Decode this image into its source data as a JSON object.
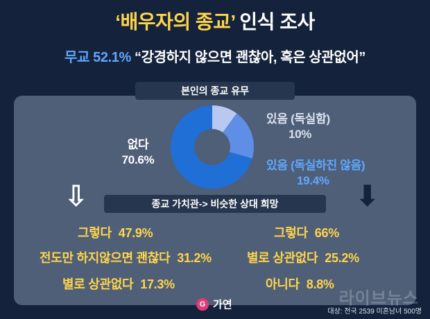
{
  "header": {
    "title_highlight": "‘배우자의 종교’",
    "title_rest": " 인식 조사",
    "subtitle_pct": "무교 52.1%",
    "subtitle_quote": " “강경하지 않으면 괜찮아, 혹은 상관없어”"
  },
  "section1": {
    "label": "본인의 종교 유무"
  },
  "chart_data": {
    "type": "pie",
    "title": "본인의 종교 유무",
    "slices": [
      {
        "name": "없다",
        "value": 70.6,
        "label_name": "없다",
        "label_value": "70.6%",
        "color": "#1f6fd6"
      },
      {
        "name": "있음 (독실함)",
        "value": 10.0,
        "label_name": "있음 (독실함)",
        "label_value": "10%",
        "color": "#b8c8f0"
      },
      {
        "name": "있음 (독실하진 않음)",
        "value": 19.4,
        "label_name": "있음 (독실하진 않음)",
        "label_value": "19.4%",
        "color": "#5f8ee6"
      }
    ]
  },
  "section2": {
    "label": "종교 가치관-> 비슷한 상대 희망"
  },
  "left_list": [
    {
      "text": "그렇다",
      "value": "47.9%"
    },
    {
      "text": "전도만 하지않으면 괜찮다",
      "value": "31.2%"
    },
    {
      "text": "별로 상관없다",
      "value": "17.3%"
    }
  ],
  "right_list": [
    {
      "text": "그렇다",
      "value": "66%"
    },
    {
      "text": "별로 상관없다",
      "value": "25.2%"
    },
    {
      "text": "아니다",
      "value": "8.8%"
    }
  ],
  "footer": {
    "logo_text": "가연",
    "logo_glyph": "G",
    "note": "대상: 전국 2539 미혼남녀 500명",
    "watermark": "라이브뉴스"
  },
  "icons": {
    "left_arrow": "down-arrow-icon",
    "right_arrow": "down-arrow-icon"
  }
}
